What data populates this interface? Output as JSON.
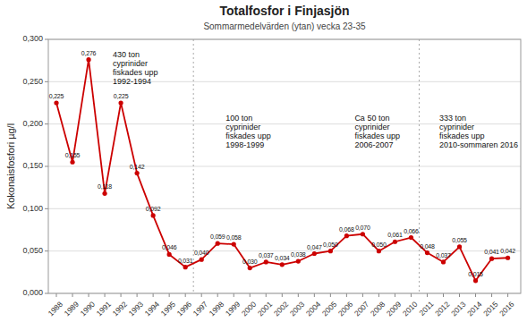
{
  "chart_data": {
    "type": "line",
    "title": "Totalfosfor i Finjasjön",
    "subtitle": "Sommarmedelvärden (ytan) vecka 23-35",
    "ylabel": "Kokonaisfosfori µg/l",
    "x": [
      1988,
      1989,
      1990,
      1991,
      1992,
      1993,
      1994,
      1995,
      1996,
      1997,
      1998,
      1999,
      2000,
      2001,
      2002,
      2003,
      2004,
      2005,
      2006,
      2007,
      2008,
      2009,
      2010,
      2011,
      2012,
      2013,
      2014,
      2015,
      2016
    ],
    "values": [
      0.225,
      0.155,
      0.276,
      0.118,
      0.225,
      0.142,
      0.092,
      0.046,
      0.031,
      0.04,
      0.059,
      0.058,
      0.03,
      0.037,
      0.034,
      0.038,
      0.047,
      0.05,
      0.068,
      0.07,
      0.05,
      0.061,
      0.066,
      0.048,
      0.037,
      0.055,
      0.015,
      0.041,
      0.042
    ],
    "value_labels": [
      "0,225",
      "0,155",
      "0,276",
      "0,118",
      "0,225",
      "0,142",
      "0,092",
      "0,046",
      "0,031",
      "0,040",
      "0,059",
      "0,058",
      "0,030",
      "0,037",
      "0,034",
      "0,038",
      "0,047",
      "0,050",
      "0,068",
      "0,070",
      "0,050",
      "0,061",
      "0,066",
      "0,048",
      "0,037",
      "0,055",
      "0,015",
      "0,041",
      "0,042"
    ],
    "color": "#cc0000",
    "marker": "circle",
    "data_labels": true,
    "grid": true,
    "xlim": [
      1987.5,
      2016.8
    ],
    "xticks": [
      1988,
      1989,
      1990,
      1991,
      1992,
      1993,
      1994,
      1995,
      1996,
      1997,
      1998,
      1999,
      2000,
      2001,
      2002,
      2003,
      2004,
      2005,
      2006,
      2007,
      2008,
      2009,
      2010,
      2011,
      2012,
      2013,
      2014,
      2015,
      2016
    ],
    "ylim": [
      0.0,
      0.3
    ],
    "yticks": [
      {
        "value": 0.0,
        "label": "0,000"
      },
      {
        "value": 0.05,
        "label": "0,050"
      },
      {
        "value": 0.1,
        "label": "0,100"
      },
      {
        "value": 0.15,
        "label": "0,150"
      },
      {
        "value": 0.2,
        "label": "0,200"
      },
      {
        "value": 0.25,
        "label": "0,250"
      },
      {
        "value": 0.3,
        "label": "0,300"
      }
    ],
    "vlines": [
      1996.5,
      2010.5
    ],
    "annotations": [
      {
        "x": 1991.5,
        "y": 0.245,
        "text": "430 ton\ncyprinider\nfiskades upp\n1992-1994"
      },
      {
        "x": 1998.5,
        "y": 0.17,
        "text": "100 ton\ncyprinider\nfiskades upp\n1998-1999"
      },
      {
        "x": 2006.5,
        "y": 0.17,
        "text": "Ca 50 ton\ncyprinider\nfiskades upp\n2006-2007"
      },
      {
        "x": 2013.5,
        "y": 0.17,
        "text": "333 ton\ncyprinider\nfiskades upp\n2010-sommaren 2016"
      }
    ]
  }
}
